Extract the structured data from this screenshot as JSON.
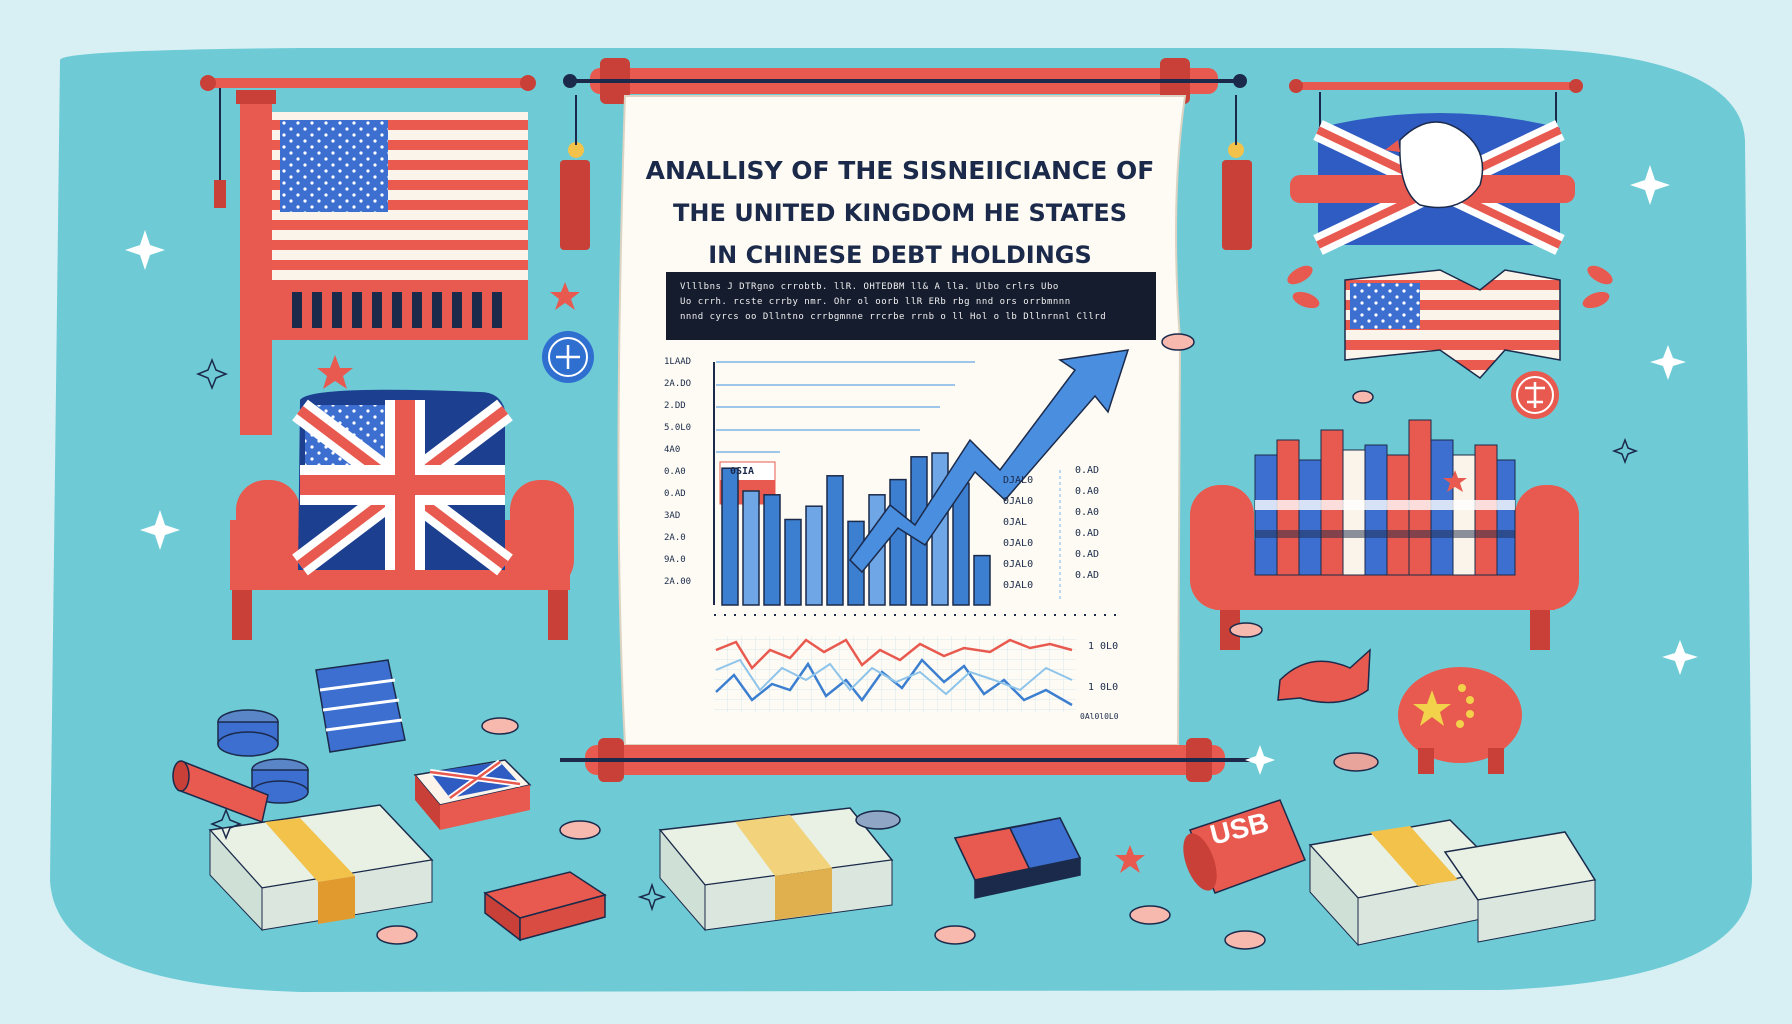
{
  "poster": {
    "title_line1": "ANALLISY OF THE SISNEIICIANCE OF",
    "title_line2": "THE UNITED KINGDOM HE STATES",
    "title_line3": "IN CHINESE DEBT HOLDINGS",
    "note_line1": "Vlllbns J DTRgno crrobtb. llR. OHTEDBM ll& A lla. Ulbo crlrs Ubo",
    "note_line2": "Uo crrh. rcste crrby nmr. Ohr ol oorb llR ERb rbg nnd ors orrbmnnn",
    "note_line3": "nnnd cyrcs oo Dllntno crrbgmnne rrcrbe rrnb o ll Hol o lb Dllnrnnl Cllrd",
    "usb_text": "USB"
  },
  "chart": {
    "y_ticks": [
      "1LAAD",
      "2A.DO",
      "2.DD",
      "5.0L0",
      "4A0",
      "0.A0",
      "0.AD",
      "3AD",
      "2A.0",
      "9A.0",
      "2A.00"
    ],
    "badge": "0SIA",
    "table_rows": [
      [
        "DJAL0",
        "0.AD"
      ],
      [
        "0JAL0",
        "0.A0"
      ],
      [
        "0JAL",
        "0.A0"
      ],
      [
        "0JAL0",
        "0.AD"
      ],
      [
        "0JAL0",
        "0.AD"
      ],
      [
        "0JAL0",
        "0.AD"
      ]
    ],
    "right_labels": [
      "1 0L0",
      "1 0L0"
    ],
    "bottom_label": "0Al0l0L0",
    "bars": [
      0.72,
      0.6,
      0.58,
      0.45,
      0.52,
      0.68,
      0.44,
      0.58,
      0.66,
      0.78,
      0.8,
      0.64,
      0.26
    ],
    "arrow_trend": "up"
  },
  "colors": {
    "background": "#d8f0f4",
    "blob": "#6ecbd6",
    "red": "#e85a4f",
    "navy": "#1b2a4a",
    "blue": "#3c7fd0",
    "paper": "#fdfbf3"
  },
  "icons": [
    "us-flag-icon",
    "uk-flag-icon",
    "china-flag-icon",
    "dove-icon",
    "money-stack-icon",
    "coin-icon",
    "scroll-icon",
    "sparkle-icon"
  ]
}
